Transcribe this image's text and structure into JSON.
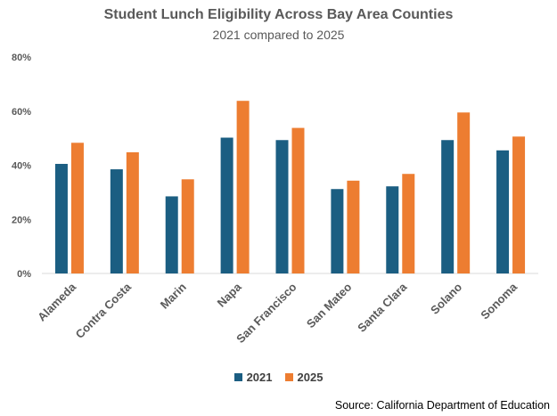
{
  "chart_data": {
    "type": "bar",
    "title": "Student Lunch Eligibility Across Bay Area Counties",
    "subtitle": "2021 compared to 2025",
    "categories": [
      "Alameda",
      "Contra Costa",
      "Marin",
      "Napa",
      "San Francisco",
      "San Mateo",
      "Santa Clara",
      "Solano",
      "Sonoma"
    ],
    "series": [
      {
        "name": "2021",
        "color": "#1B5E82",
        "values": [
          40.5,
          38.5,
          28.5,
          50.2,
          49.3,
          31.2,
          32.2,
          49.3,
          45.5
        ]
      },
      {
        "name": "2025",
        "color": "#ED7D31",
        "values": [
          48.3,
          44.8,
          34.8,
          63.8,
          53.8,
          34.3,
          36.8,
          59.5,
          50.6
        ]
      }
    ],
    "yticks": [
      0,
      20,
      40,
      60,
      80
    ],
    "ytick_labels": [
      "0%",
      "20%",
      "40%",
      "60%",
      "80%"
    ],
    "ylim": [
      0,
      80
    ],
    "xlabel": "",
    "ylabel": "",
    "grid": false,
    "legend_position": "bottom"
  },
  "source": "Source: California Department of Education"
}
